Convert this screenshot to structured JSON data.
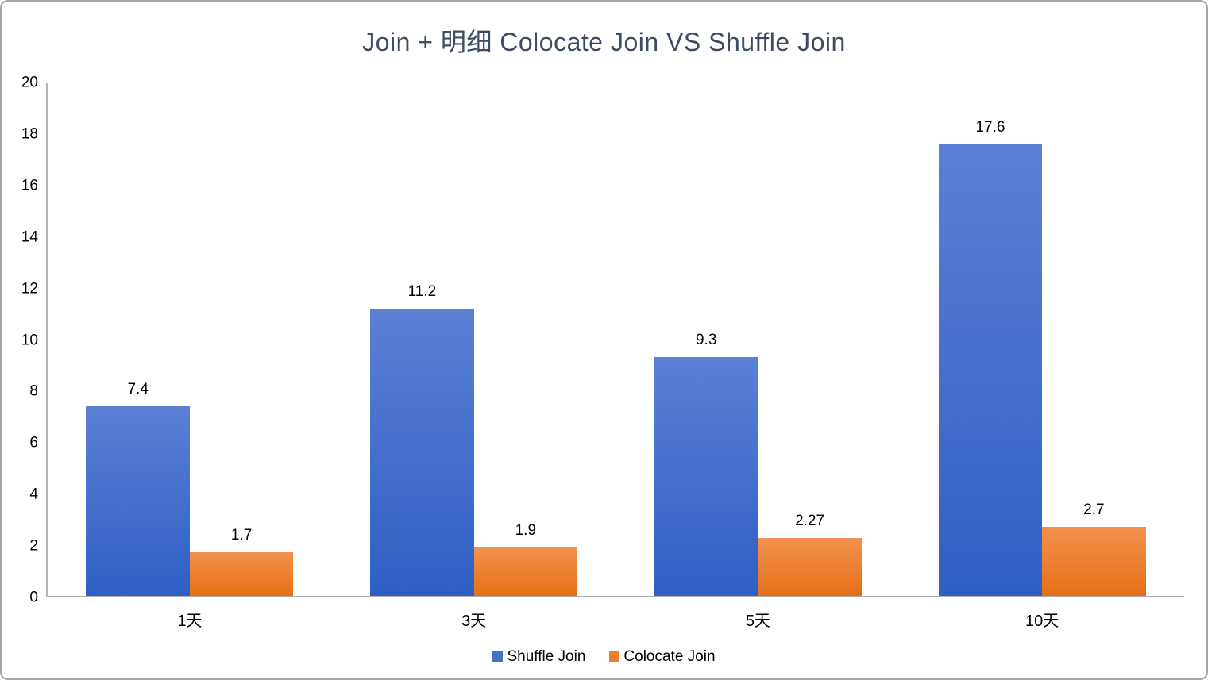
{
  "title": "Join + 明细 Colocate Join VS Shuffle Join",
  "title_color": "#3d4c63",
  "axis_line_color": "#b3b3b3",
  "chart_data": {
    "type": "bar",
    "title": "Join + 明细 Colocate Join VS Shuffle Join",
    "categories": [
      "1天",
      "3天",
      "5天",
      "10天"
    ],
    "series": [
      {
        "name": "Shuffle Join",
        "values": [
          7.4,
          11.2,
          9.3,
          17.6
        ],
        "labels": [
          "7.4",
          "11.2",
          "9.3",
          "17.6"
        ],
        "color": "#4472c4",
        "gradient_top": "#5b80d4",
        "gradient_bottom": "#2e5fc4"
      },
      {
        "name": "Colocate Join",
        "values": [
          1.7,
          1.9,
          2.27,
          2.7
        ],
        "labels": [
          "1.7",
          "1.9",
          "2.27",
          "2.7"
        ],
        "color": "#ed7d31",
        "gradient_top": "#f2924e",
        "gradient_bottom": "#e56f17"
      }
    ],
    "xlabel": "",
    "ylabel": "",
    "ylim": [
      0,
      20
    ],
    "ytick_step": 2,
    "grid": false,
    "legend_position": "bottom"
  }
}
